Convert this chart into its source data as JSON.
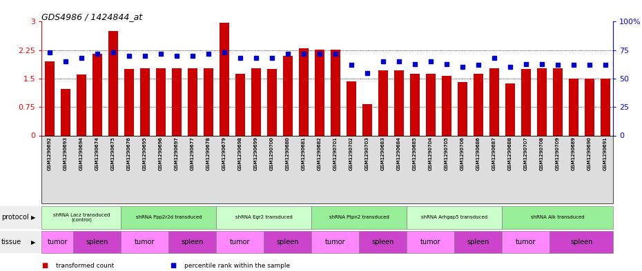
{
  "title": "GDS4986 / 1424844_at",
  "samples": [
    "GSM1290692",
    "GSM1290693",
    "GSM1290694",
    "GSM1290674",
    "GSM1290675",
    "GSM1290676",
    "GSM1290695",
    "GSM1290696",
    "GSM1290697",
    "GSM1290677",
    "GSM1290678",
    "GSM1290679",
    "GSM1290698",
    "GSM1290699",
    "GSM1290700",
    "GSM1290680",
    "GSM1290681",
    "GSM1290682",
    "GSM1290701",
    "GSM1290702",
    "GSM1290703",
    "GSM1290683",
    "GSM1290684",
    "GSM1290685",
    "GSM1290704",
    "GSM1290705",
    "GSM1290706",
    "GSM1290686",
    "GSM1290687",
    "GSM1290688",
    "GSM1290707",
    "GSM1290708",
    "GSM1290709",
    "GSM1290689",
    "GSM1290690",
    "GSM1290691"
  ],
  "bar_values": [
    1.95,
    1.22,
    1.6,
    2.15,
    2.75,
    1.75,
    1.78,
    1.78,
    1.78,
    1.78,
    1.78,
    2.98,
    1.63,
    1.78,
    1.75,
    2.1,
    2.3,
    2.27,
    2.27,
    1.42,
    0.83,
    1.72,
    1.72,
    1.62,
    1.62,
    1.58,
    1.4,
    1.63,
    1.78,
    1.38,
    1.75,
    1.78,
    1.78,
    1.5,
    1.5,
    1.5
  ],
  "dot_values": [
    73,
    65,
    68,
    72,
    73,
    70,
    70,
    72,
    70,
    70,
    72,
    73,
    68,
    68,
    68,
    72,
    72,
    72,
    72,
    62,
    55,
    65,
    65,
    63,
    65,
    63,
    60,
    62,
    68,
    60,
    63,
    63,
    62,
    62,
    62,
    62
  ],
  "protocols": [
    {
      "label": "shRNA Lacz transduced\n(control)",
      "start": 0,
      "end": 5,
      "color": "#ccffcc"
    },
    {
      "label": "shRNA Ppp2r2d transduced",
      "start": 5,
      "end": 11,
      "color": "#99ee99"
    },
    {
      "label": "shRNA Egr2 transduced",
      "start": 11,
      "end": 17,
      "color": "#ccffcc"
    },
    {
      "label": "shRNA Ptpn2 transduced",
      "start": 17,
      "end": 23,
      "color": "#99ee99"
    },
    {
      "label": "shRNA Arhgap5 transduced",
      "start": 23,
      "end": 29,
      "color": "#ccffcc"
    },
    {
      "label": "shRNA Alk transduced",
      "start": 29,
      "end": 36,
      "color": "#99ee99"
    }
  ],
  "tissues": [
    {
      "label": "tumor",
      "start": 0,
      "end": 2,
      "color": "#ff88ff"
    },
    {
      "label": "spleen",
      "start": 2,
      "end": 5,
      "color": "#cc44cc"
    },
    {
      "label": "tumor",
      "start": 5,
      "end": 8,
      "color": "#ff88ff"
    },
    {
      "label": "spleen",
      "start": 8,
      "end": 11,
      "color": "#cc44cc"
    },
    {
      "label": "tumor",
      "start": 11,
      "end": 14,
      "color": "#ff88ff"
    },
    {
      "label": "spleen",
      "start": 14,
      "end": 17,
      "color": "#cc44cc"
    },
    {
      "label": "tumor",
      "start": 17,
      "end": 20,
      "color": "#ff88ff"
    },
    {
      "label": "spleen",
      "start": 20,
      "end": 23,
      "color": "#cc44cc"
    },
    {
      "label": "tumor",
      "start": 23,
      "end": 26,
      "color": "#ff88ff"
    },
    {
      "label": "spleen",
      "start": 26,
      "end": 29,
      "color": "#cc44cc"
    },
    {
      "label": "tumor",
      "start": 29,
      "end": 32,
      "color": "#ff88ff"
    },
    {
      "label": "spleen",
      "start": 32,
      "end": 36,
      "color": "#cc44cc"
    }
  ],
  "bar_color": "#cc0000",
  "dot_color": "#0000cc",
  "ylim_left": [
    0,
    3
  ],
  "ylim_right": [
    0,
    100
  ],
  "yticks_left": [
    0,
    0.75,
    1.5,
    2.25,
    3
  ],
  "ytick_labels_left": [
    "0",
    "0.75",
    "1.5",
    "2.25",
    "3"
  ],
  "yticks_right": [
    0,
    25,
    50,
    75,
    100
  ],
  "ytick_labels_right": [
    "0",
    "25",
    "50",
    "75",
    "100%"
  ],
  "gridlines": [
    0.75,
    1.5,
    2.25
  ],
  "bg_color": "#ffffff",
  "protocol_row_label": "protocol",
  "tissue_row_label": "tissue",
  "legend_items": [
    {
      "color": "#cc0000",
      "label": "transformed count"
    },
    {
      "color": "#0000cc",
      "label": "percentile rank within the sample"
    }
  ]
}
